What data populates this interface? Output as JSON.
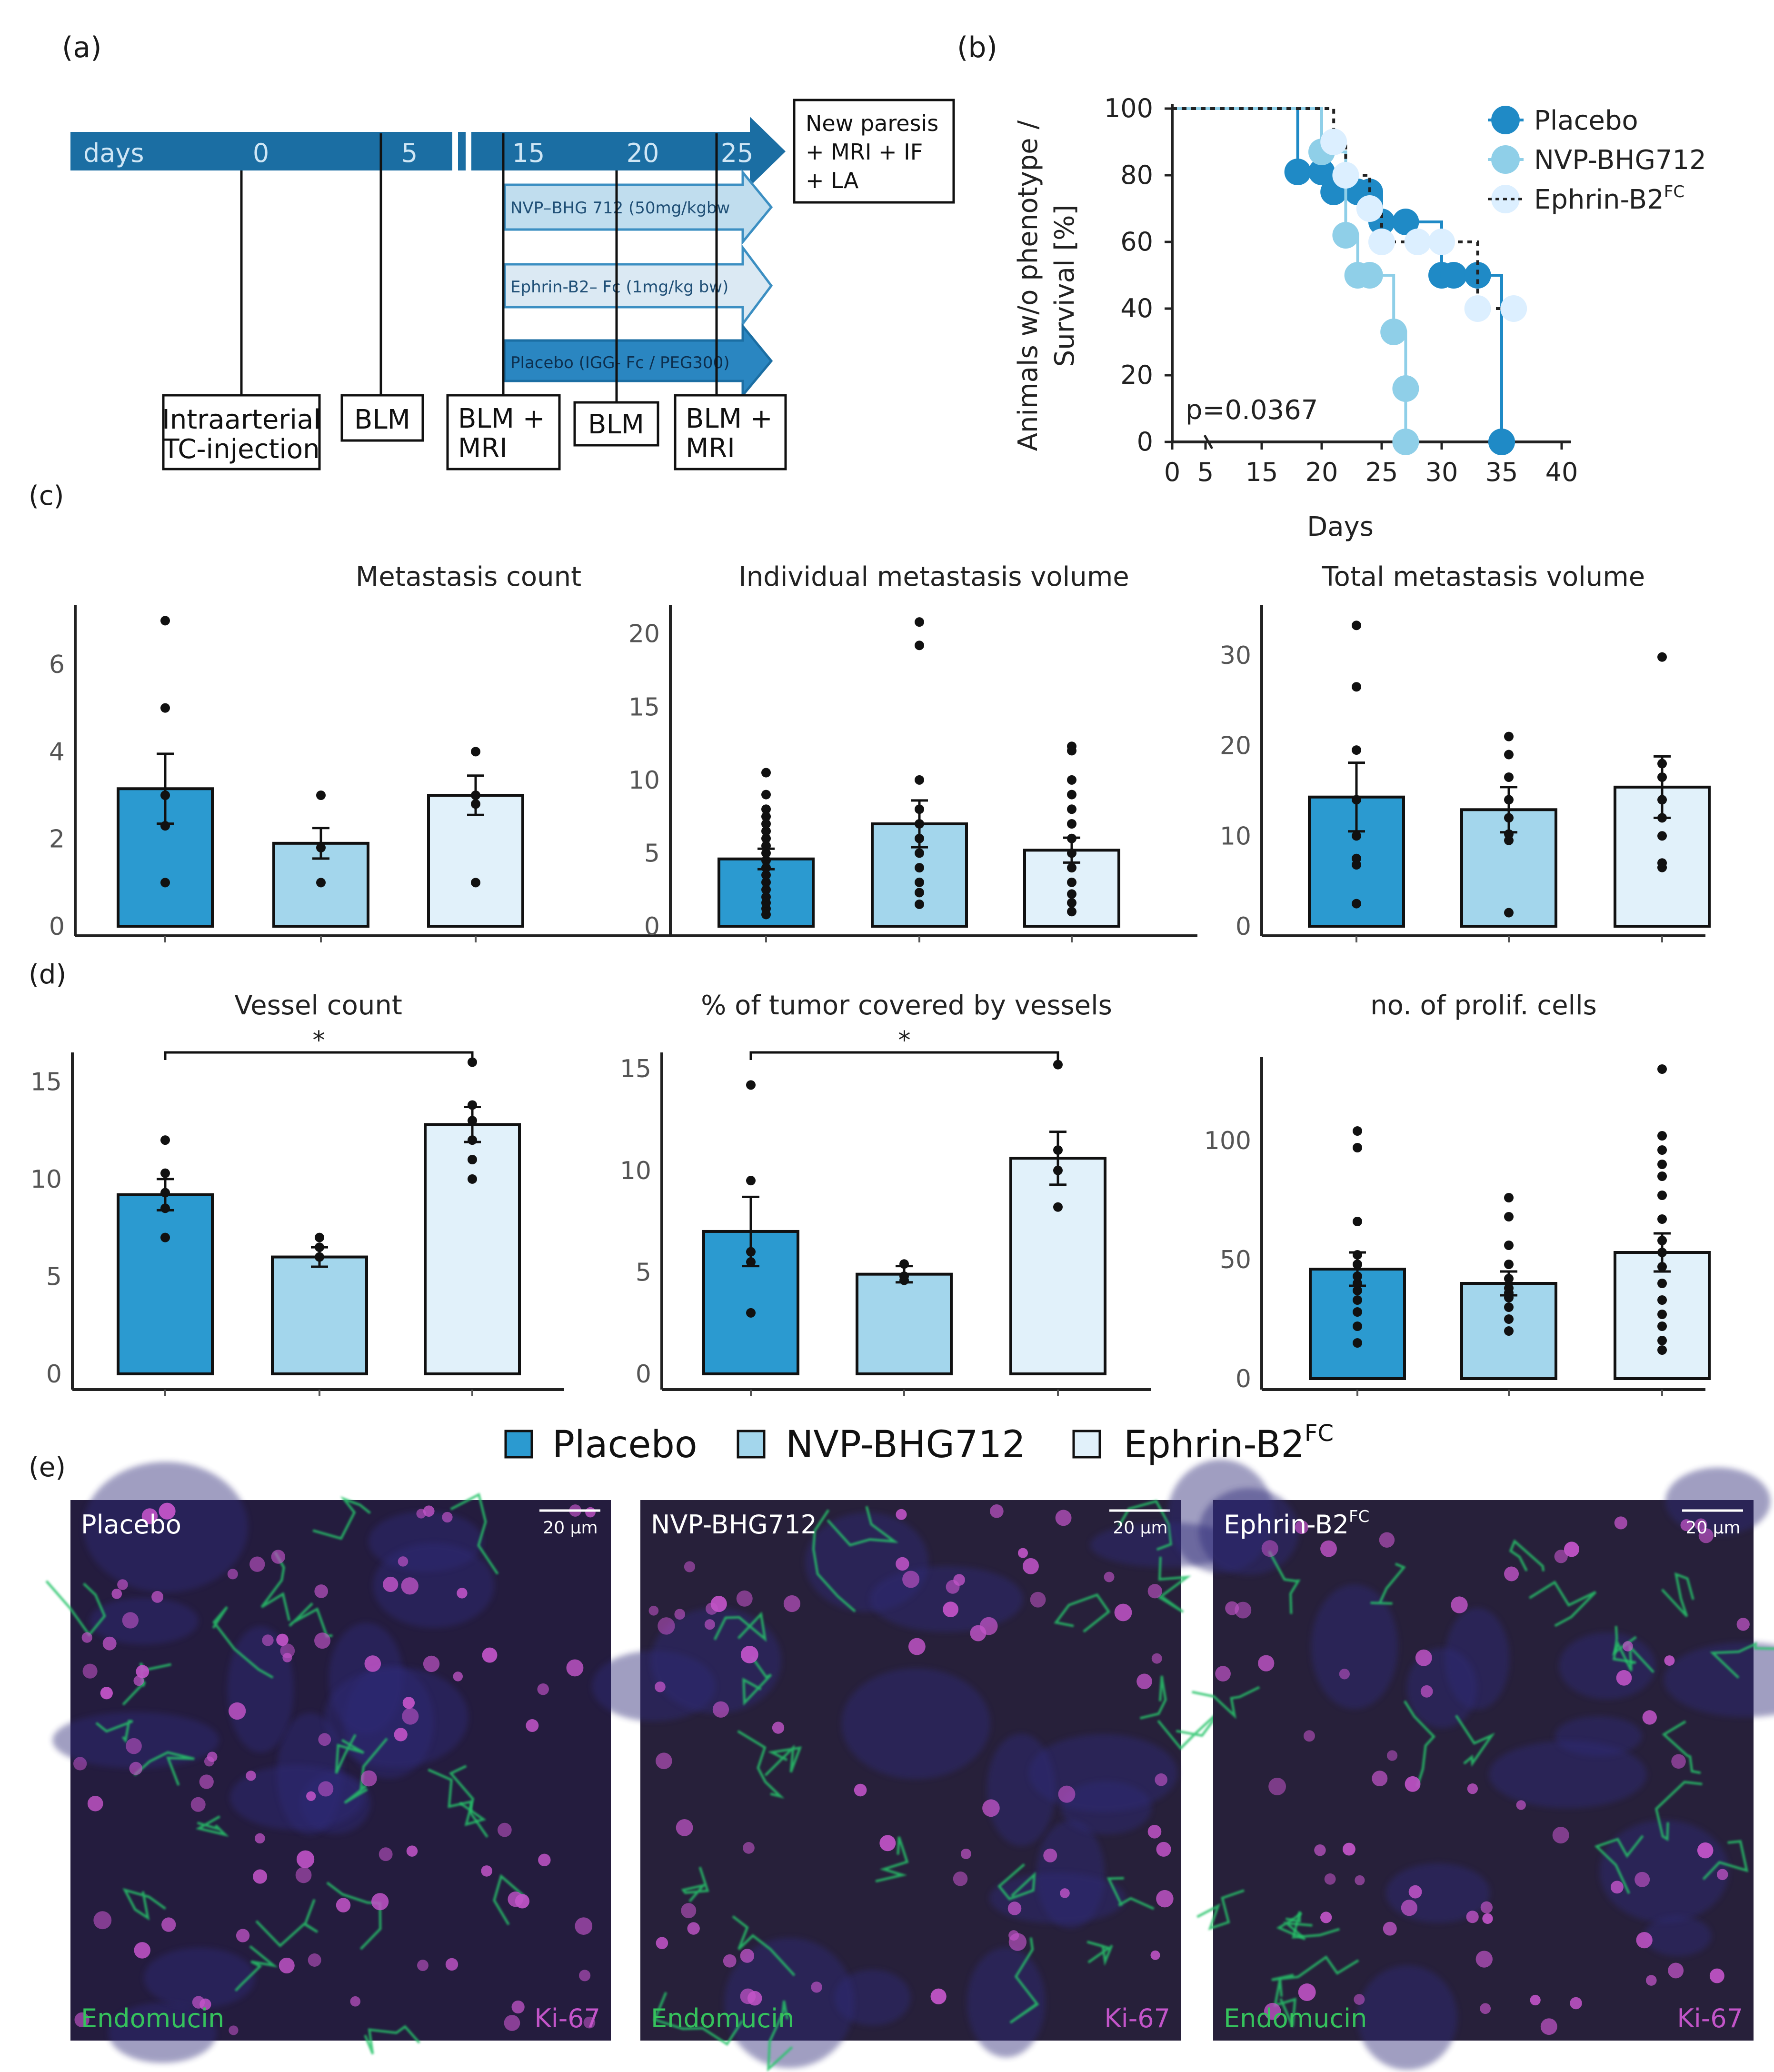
{
  "panel_labels": {
    "a": "(a)",
    "b": "(b)",
    "c": "(c)",
    "d": "(d)",
    "e": "(e)"
  },
  "colors": {
    "placebo": "#2b9ad0",
    "nvp": "#a3d6ec",
    "ephrin": "#e1f1fa",
    "arrow": "#1b6ea3",
    "km_placebo": "#1f8ac6",
    "km_nvp": "#8fcfe8",
    "km_ephrin": "#dcefff"
  },
  "timeline": {
    "days_label": "days",
    "ticks": [
      "0",
      "5",
      "15",
      "20",
      "25"
    ],
    "outcome_box": [
      "New  paresis",
      "+ MRI + IF",
      "+ LA"
    ],
    "treatments": [
      "NVP–BHG 712 (50mg/kgbw",
      "Ephrin-B2– Fc (1mg/kg bw)",
      "Placebo (IGG- Fc / PEG300)"
    ],
    "events": [
      [
        "Intraarterial",
        "TC-injection"
      ],
      [
        "BLM"
      ],
      [
        "BLM +",
        "MRI"
      ],
      [
        "BLM"
      ],
      [
        "BLM +",
        "MRI"
      ]
    ]
  },
  "survival": {
    "ylabel_line1": "Animals w/o phenotype /",
    "ylabel_line2": "Survival [%]",
    "xlabel": "Days",
    "pvalue": "p=0.0367",
    "yticks": [
      "100",
      "80",
      "60",
      "40",
      "20",
      "0"
    ],
    "xticks": [
      "0",
      "5",
      "15",
      "20",
      "25",
      "30",
      "35",
      "40"
    ],
    "legend": [
      "Placebo",
      "NVP-BHG712",
      "Ephrin-B2"
    ],
    "legend_sup": "FC"
  },
  "legend_main": {
    "placebo": "Placebo",
    "nvp": "NVP-BHG712",
    "ephrin": "Ephrin-B2",
    "ephrin_sup": "FC"
  },
  "chart_data": [
    {
      "type": "line",
      "title": "Animals w/o phenotype / Survival [%]",
      "xlabel": "Days",
      "ylabel": "Survival [%]",
      "ylim": [
        0,
        100
      ],
      "series": [
        {
          "name": "Placebo",
          "x": [
            0,
            18,
            20,
            21,
            23,
            24,
            25,
            27,
            30,
            31,
            33,
            35
          ],
          "values": [
            100,
            81,
            81,
            75,
            75,
            75,
            66,
            66,
            50,
            50,
            50,
            0
          ]
        },
        {
          "name": "NVP-BHG712",
          "x": [
            0,
            20,
            22,
            23,
            24,
            26,
            27
          ],
          "values": [
            100,
            87,
            62,
            50,
            50,
            33,
            16
          ]
        },
        {
          "name": "Ephrin-B2FC",
          "x": [
            0,
            21,
            22,
            24,
            25,
            28,
            30,
            33,
            36
          ],
          "values": [
            100,
            90,
            80,
            70,
            60,
            60,
            60,
            40,
            40
          ]
        }
      ]
    },
    {
      "type": "bar",
      "title": "Metastasis count",
      "categories": [
        "Placebo",
        "NVP-BHG712",
        "Ephrin-B2FC"
      ],
      "values": [
        3.15,
        1.9,
        3.0
      ],
      "ylim": [
        0,
        7.2
      ],
      "yticks": [
        "0",
        "2",
        "4",
        "6"
      ]
    },
    {
      "type": "bar",
      "title": "Individual metastasis volume",
      "categories": [
        "Placebo",
        "NVP-BHG712",
        "Ephrin-B2FC"
      ],
      "values": [
        4.6,
        7.0,
        5.2
      ],
      "ylim": [
        0,
        21
      ],
      "yticks": [
        "0",
        "5",
        "10",
        "15",
        "20"
      ]
    },
    {
      "type": "bar",
      "title": "Total metastasis volume",
      "categories": [
        "Placebo",
        "NVP-BHG712",
        "Ephrin-B2FC"
      ],
      "values": [
        14.3,
        12.9,
        15.4
      ],
      "ylim": [
        0,
        34
      ],
      "yticks": [
        "0",
        "10",
        "20",
        "30"
      ]
    },
    {
      "type": "bar",
      "title": "Vessel count",
      "categories": [
        "Placebo",
        "NVP-BHG712",
        "Ephrin-B2FC"
      ],
      "values": [
        9.2,
        6.0,
        12.8
      ],
      "ylim": [
        0,
        16.5
      ],
      "yticks": [
        "0",
        "5",
        "10",
        "15"
      ],
      "significance": "*"
    },
    {
      "type": "bar",
      "title": "% of tumor covered by vessels",
      "categories": [
        "Placebo",
        "NVP-BHG712",
        "Ephrin-B2FC"
      ],
      "values": [
        7.0,
        4.9,
        10.6
      ],
      "ylim": [
        0,
        15.8
      ],
      "yticks": [
        "0",
        "5",
        "10",
        "15"
      ],
      "significance": "*"
    },
    {
      "type": "bar",
      "title": "no. of prolif. cells",
      "categories": [
        "Placebo",
        "NVP-BHG712",
        "Ephrin-B2FC"
      ],
      "values": [
        46,
        40,
        53
      ],
      "ylim": [
        0,
        135
      ],
      "yticks": [
        "0",
        "50",
        "100"
      ]
    }
  ],
  "micrographs": [
    {
      "label": "Placebo",
      "sup": "",
      "scale": "20 μm",
      "left": "Endomucin",
      "right": "Ki-67"
    },
    {
      "label": "NVP-BHG712",
      "sup": "",
      "scale": "20 μm",
      "left": "Endomucin",
      "right": "Ki-67"
    },
    {
      "label": "Ephrin-B2",
      "sup": "FC",
      "scale": "20 μm",
      "left": "Endomucin",
      "right": "Ki-67"
    }
  ]
}
